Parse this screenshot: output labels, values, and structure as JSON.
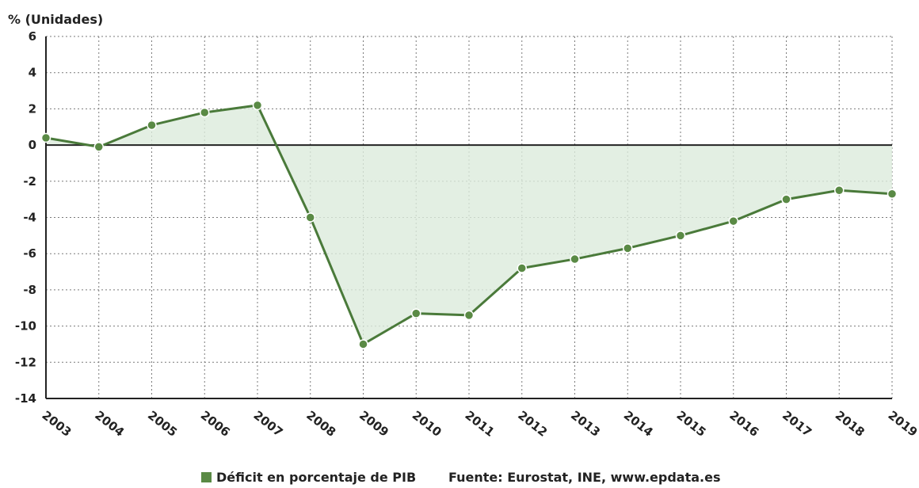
{
  "chart_data": {
    "type": "area",
    "ylabel": "% (Unidades)",
    "xlabel": "",
    "categories": [
      "2003",
      "2004",
      "2005",
      "2006",
      "2007",
      "2008",
      "2009",
      "2010",
      "2011",
      "2012",
      "2013",
      "2014",
      "2015",
      "2016",
      "2017",
      "2018",
      "2019"
    ],
    "series": [
      {
        "name": "Déficit en porcentaje de PIB",
        "values": [
          0.4,
          -0.1,
          1.1,
          1.8,
          2.2,
          -4.0,
          -11.0,
          -9.3,
          -9.4,
          -6.8,
          -6.3,
          -5.7,
          -5.0,
          -4.2,
          -3.0,
          -2.5,
          -2.7
        ]
      }
    ],
    "ylim": [
      -14,
      6
    ],
    "yticks": [
      6,
      4,
      2,
      0,
      -2,
      -4,
      -6,
      -8,
      -10,
      -12,
      -14
    ],
    "grid": true,
    "legend_position": "bottom",
    "source": "Fuente: Eurostat, INE, www.epdata.es",
    "colors": {
      "line": "#4a7a3a",
      "marker": "#5a8a45",
      "fill": "#dcebdc",
      "grid": "#7a7a7a",
      "axis": "#222222",
      "legend": "#5a8a45"
    }
  }
}
